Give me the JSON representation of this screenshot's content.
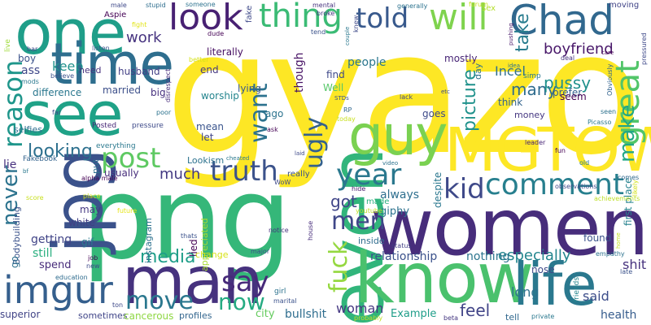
{
  "palette": {
    "yellow": "#fde725",
    "lime": "#b5de2b",
    "green": "#6ece58",
    "teal_green": "#35b779",
    "teal": "#1f9e89",
    "cyan": "#26828e",
    "blue": "#31688e",
    "indigo": "#3e4989",
    "purple": "#482878",
    "deep_purple": "#440154"
  },
  "words": [
    {
      "text": "gyazo",
      "color": "#fde725"
    },
    {
      "text": "png",
      "color": "#35b779"
    },
    {
      "text": "women",
      "color": "#472d7b"
    },
    {
      "text": "even",
      "color": "#31b57b"
    },
    {
      "text": "know",
      "color": "#4ac16d"
    },
    {
      "text": "MGTOW",
      "color": "#fde725"
    },
    {
      "text": "jpg",
      "color": "#3b528b"
    },
    {
      "text": "man",
      "color": "#46327e"
    },
    {
      "text": "see",
      "color": "#1fa287"
    },
    {
      "text": "one",
      "color": "#1f9e89"
    },
    {
      "text": "time",
      "color": "#2e6e8e"
    },
    {
      "text": "guy",
      "color": "#7ad151"
    },
    {
      "text": "life",
      "color": "#2a788e"
    },
    {
      "text": "imgur",
      "color": "#355f8d"
    },
    {
      "text": "Chad",
      "color": "#31688e"
    },
    {
      "text": "look",
      "color": "#482173"
    },
    {
      "text": "will",
      "color": "#7fd34e"
    },
    {
      "text": "thing",
      "color": "#3bbb75"
    },
    {
      "text": "comment",
      "color": "#277f8e"
    },
    {
      "text": "year",
      "color": "#2a788e"
    },
    {
      "text": "told",
      "color": "#38598c"
    },
    {
      "text": "great",
      "color": "#52c569"
    },
    {
      "text": "make",
      "color": "#22a785"
    },
    {
      "text": "kid",
      "color": "#3e4989"
    },
    {
      "text": "truth",
      "color": "#3b528b"
    },
    {
      "text": "post",
      "color": "#5ec962"
    },
    {
      "text": "reason",
      "color": "#1f968b"
    },
    {
      "text": "ugly",
      "color": "#34618d"
    },
    {
      "text": "want",
      "color": "#2c728e"
    },
    {
      "text": "fuck",
      "color": "#95d840"
    },
    {
      "text": "say",
      "color": "#472a7a"
    },
    {
      "text": "move",
      "color": "#2a778e"
    },
    {
      "text": "now",
      "color": "#25ab82"
    },
    {
      "text": "men",
      "color": "#3f4788"
    },
    {
      "text": "never",
      "color": "#2c738e"
    },
    {
      "text": "work",
      "color": "#46337f"
    },
    {
      "text": "looking",
      "color": "#2d708e"
    },
    {
      "text": "media",
      "color": "#1f9e89"
    },
    {
      "text": "much",
      "color": "#443a83"
    },
    {
      "text": "got",
      "color": "#404588"
    },
    {
      "text": "picture",
      "color": "#20928c"
    },
    {
      "text": "many",
      "color": "#2f6c8e"
    },
    {
      "text": "take",
      "color": "#287c8e"
    },
    {
      "text": "boyfriend",
      "color": "#481769"
    },
    {
      "text": "pussy",
      "color": "#21918c"
    },
    {
      "text": "Incel",
      "color": "#2e6f8e"
    },
    {
      "text": "relationship",
      "color": "#3b528b"
    },
    {
      "text": "especially",
      "color": "#24868e"
    },
    {
      "text": "nothing",
      "color": "#2b758e"
    },
    {
      "text": "woman",
      "color": "#453882"
    },
    {
      "text": "feel",
      "color": "#414487"
    },
    {
      "text": "long",
      "color": "#2c728e"
    },
    {
      "text": "shit",
      "color": "#46327e"
    },
    {
      "text": "said",
      "color": "#3d4e8a"
    },
    {
      "text": "health",
      "color": "#365c8d"
    },
    {
      "text": "bullshit",
      "color": "#2e6d8e"
    },
    {
      "text": "Example",
      "color": "#1f9e89"
    },
    {
      "text": "people",
      "color": "#2a768e"
    },
    {
      "text": "though",
      "color": "#471365"
    },
    {
      "text": "always",
      "color": "#2e6f8e"
    },
    {
      "text": "getting",
      "color": "#414487"
    },
    {
      "text": "still",
      "color": "#29af7f"
    },
    {
      "text": "spend",
      "color": "#472c7a"
    },
    {
      "text": "superior",
      "color": "#414487"
    },
    {
      "text": "sometimes",
      "color": "#404588"
    },
    {
      "text": "cancerous",
      "color": "#8fd744"
    },
    {
      "text": "profiles",
      "color": "#32658e"
    },
    {
      "text": "city",
      "color": "#65cb5e"
    },
    {
      "text": "Bodybuilding",
      "color": "#3b528b"
    },
    {
      "text": "instagram",
      "color": "#2d718e"
    },
    {
      "text": "lied",
      "color": "#440154"
    },
    {
      "text": "appreciated",
      "color": "#a8db34"
    },
    {
      "text": "change",
      "color": "#d8e219"
    },
    {
      "text": "giphy",
      "color": "#2c728e"
    },
    {
      "text": "despite",
      "color": "#2a778e"
    },
    {
      "text": "first place",
      "color": "#26828e"
    },
    {
      "text": "found",
      "color": "#3b528b"
    },
    {
      "text": "prefer",
      "color": "#34618d"
    },
    {
      "text": "seem",
      "color": "#440154"
    },
    {
      "text": "think",
      "color": "#33638d"
    },
    {
      "text": "money",
      "color": "#453781"
    },
    {
      "text": "goes",
      "color": "#3e4a89"
    },
    {
      "text": "mostly",
      "color": "#482576"
    },
    {
      "text": "day",
      "color": "#2d718e"
    },
    {
      "text": "find",
      "color": "#3e4989"
    },
    {
      "text": "Well",
      "color": "#55c667"
    },
    {
      "text": "ago",
      "color": "#2c738e"
    },
    {
      "text": "lying",
      "color": "#38598c"
    },
    {
      "text": "mean",
      "color": "#3a548c"
    },
    {
      "text": "let",
      "color": "#404588"
    },
    {
      "text": "worship",
      "color": "#25858e"
    },
    {
      "text": "end",
      "color": "#453882"
    },
    {
      "text": "literally",
      "color": "#471063"
    },
    {
      "text": "husband",
      "color": "#423f85"
    },
    {
      "text": "married",
      "color": "#3c4f8a"
    },
    {
      "text": "big",
      "color": "#46307e"
    },
    {
      "text": "difference",
      "color": "#2a778e"
    },
    {
      "text": "ass",
      "color": "#3f4889"
    },
    {
      "text": "keep",
      "color": "#21918c"
    },
    {
      "text": "need",
      "color": "#46327e"
    },
    {
      "text": "boy",
      "color": "#3b528b"
    },
    {
      "text": "Lookism",
      "color": "#2c728e"
    },
    {
      "text": "usually",
      "color": "#472e7c"
    },
    {
      "text": "put",
      "color": "#2e6e8e"
    },
    {
      "text": "gif",
      "color": "#2a788e"
    },
    {
      "text": "may",
      "color": "#453882"
    },
    {
      "text": "white",
      "color": "#423f85"
    },
    {
      "text": "go",
      "color": "#2c718e"
    },
    {
      "text": "lie",
      "color": "#46307e"
    },
    {
      "text": "selfies",
      "color": "#2e6e8e"
    },
    {
      "text": "Posted",
      "color": "#482878"
    },
    {
      "text": "pressure",
      "color": "#3e4a89"
    },
    {
      "text": "everything",
      "color": "#2a788e"
    },
    {
      "text": "Fakebook",
      "color": "#33638d"
    },
    {
      "text": "alpha male",
      "color": "#440154"
    },
    {
      "text": "place",
      "color": "#d2e21b"
    },
    {
      "text": "future",
      "color": "#e5e419"
    },
    {
      "text": "thats",
      "color": "#3b528b"
    },
    {
      "text": "notice",
      "color": "#46337f"
    },
    {
      "text": "major",
      "color": "#3d4d8a"
    },
    {
      "text": "girl",
      "color": "#2c728e"
    },
    {
      "text": "marital",
      "color": "#3b528b"
    },
    {
      "text": "job",
      "color": "#440154"
    },
    {
      "text": "new",
      "color": "#3e4989"
    },
    {
      "text": "education",
      "color": "#2f6c8e"
    },
    {
      "text": "ton",
      "color": "#3e4989"
    },
    {
      "text": "house",
      "color": "#472d7b"
    },
    {
      "text": "youtube",
      "color": "#c2df23"
    },
    {
      "text": "status",
      "color": "#423f85"
    },
    {
      "text": "made",
      "color": "#29af7f"
    },
    {
      "text": "hide",
      "color": "#481a6c"
    },
    {
      "text": "inside",
      "color": "#2e6d8e"
    },
    {
      "text": "nose",
      "color": "#3e4a89"
    },
    {
      "text": "friends",
      "color": "#25858e"
    },
    {
      "text": "tell",
      "color": "#31688e"
    },
    {
      "text": "private",
      "color": "#2a788e"
    },
    {
      "text": "probably",
      "color": "#c0df25"
    },
    {
      "text": "beta",
      "color": "#453781"
    },
    {
      "text": "late",
      "color": "#3b528b"
    },
    {
      "text": "empathy",
      "color": "#2c728e"
    },
    {
      "text": "home",
      "color": "#c5e021"
    },
    {
      "text": "achievements",
      "color": "#bddf26"
    },
    {
      "text": "observations",
      "color": "#3e4989"
    },
    {
      "text": "likely",
      "color": "#d2e21b"
    },
    {
      "text": "comes",
      "color": "#31688e"
    },
    {
      "text": "old",
      "color": "#2a788e"
    },
    {
      "text": "fun",
      "color": "#440154"
    },
    {
      "text": "leader",
      "color": "#482576"
    },
    {
      "text": "Picasso",
      "color": "#2a788e"
    },
    {
      "text": "seen",
      "color": "#2d718e"
    },
    {
      "text": "deal",
      "color": "#46327e"
    },
    {
      "text": "Obviously",
      "color": "#33638d"
    },
    {
      "text": "care",
      "color": "#440154"
    },
    {
      "text": "pressured",
      "color": "#3e4989"
    },
    {
      "text": "moving",
      "color": "#414487"
    },
    {
      "text": "sex",
      "color": "#b5de2b"
    },
    {
      "text": "forum",
      "color": "#c8e020"
    },
    {
      "text": "generally",
      "color": "#2c728e"
    },
    {
      "text": "knew",
      "color": "#3e4989"
    },
    {
      "text": "couple",
      "color": "#2a788e"
    },
    {
      "text": "tend",
      "color": "#3b528b"
    },
    {
      "text": "broke",
      "color": "#453882"
    },
    {
      "text": "mental",
      "color": "#46327e"
    },
    {
      "text": "fake",
      "color": "#3e4989"
    },
    {
      "text": "dude",
      "color": "#440154"
    },
    {
      "text": "someone",
      "color": "#2c728e"
    },
    {
      "text": "stupid",
      "color": "#2e6e8e"
    },
    {
      "text": "male",
      "color": "#3e4989"
    },
    {
      "text": "fight",
      "color": "#e2e418"
    },
    {
      "text": "listen",
      "color": "#3b528b"
    },
    {
      "text": "better",
      "color": "#d5e21a"
    },
    {
      "text": "disrespect",
      "color": "#472d7b"
    },
    {
      "text": "Aspie",
      "color": "#440154"
    },
    {
      "text": "pushing",
      "color": "#481769"
    },
    {
      "text": "live",
      "color": "#9fda3a"
    },
    {
      "text": "believe",
      "color": "#3b528b"
    },
    {
      "text": "mods",
      "color": "#2a788e"
    },
    {
      "text": "bar",
      "color": "#3e4989"
    },
    {
      "text": "idea",
      "color": "#2c728e"
    },
    {
      "text": "lack",
      "color": "#3e4989"
    },
    {
      "text": "RP",
      "color": "#31688e"
    },
    {
      "text": "today",
      "color": "#c8e020"
    },
    {
      "text": "STDs",
      "color": "#3b528b"
    },
    {
      "text": "simp",
      "color": "#2a788e"
    },
    {
      "text": "etc",
      "color": "#3e4989"
    },
    {
      "text": "poor",
      "color": "#2c728e"
    },
    {
      "text": "far",
      "color": "#3e4989"
    },
    {
      "text": "ask",
      "color": "#440154"
    },
    {
      "text": "cheated",
      "color": "#2a788e"
    },
    {
      "text": "laid",
      "color": "#3e4989"
    },
    {
      "text": "really",
      "color": "#3b528b"
    },
    {
      "text": "video",
      "color": "#2c728e"
    },
    {
      "text": "WoW",
      "color": "#3e4989"
    },
    {
      "text": "score",
      "color": "#c8e020"
    },
    {
      "text": "bf",
      "color": "#2a788e"
    }
  ]
}
